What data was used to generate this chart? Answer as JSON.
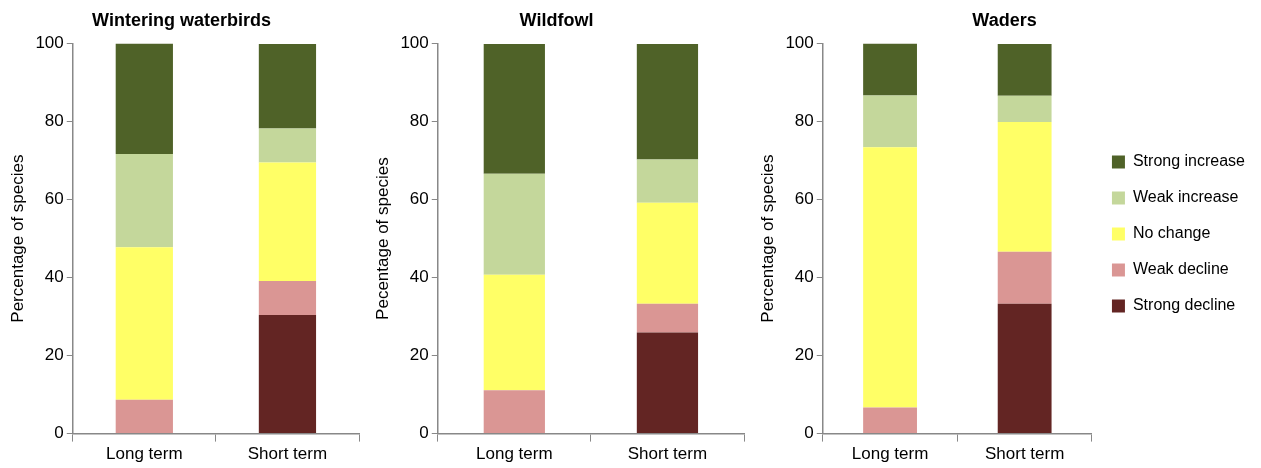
{
  "chart_data": [
    {
      "type": "bar",
      "title": "Wintering waterbirds",
      "ylabel": "Percentage of species",
      "categories": [
        "Long term",
        "Short term"
      ],
      "stacked": true,
      "ylim": [
        0,
        100
      ],
      "yticks": [
        0,
        20,
        40,
        60,
        80,
        100
      ],
      "grid": false,
      "legend": false,
      "series": [
        {
          "color": "#632523",
          "values": [
            0,
            30.4
          ]
        },
        {
          "color": "#da9694",
          "values": [
            8.7,
            8.7
          ]
        },
        {
          "color": "#ffff66",
          "values": [
            39.1,
            30.4
          ]
        },
        {
          "color": "#c4d79b",
          "values": [
            23.9,
            8.7
          ]
        },
        {
          "color": "#4f6228",
          "values": [
            28.3,
            21.7
          ]
        }
      ]
    },
    {
      "type": "bar",
      "title": "Wildfowl",
      "ylabel": "Pecentage of species",
      "categories": [
        "Long term",
        "Short term"
      ],
      "stacked": true,
      "ylim": [
        0,
        100
      ],
      "yticks": [
        0,
        20,
        40,
        60,
        80,
        100
      ],
      "grid": false,
      "legend": false,
      "series": [
        {
          "color": "#632523",
          "values": [
            0,
            25.9
          ]
        },
        {
          "color": "#da9694",
          "values": [
            11.1,
            7.4
          ]
        },
        {
          "color": "#ffff66",
          "values": [
            29.6,
            25.9
          ]
        },
        {
          "color": "#c4d79b",
          "values": [
            25.9,
            11.1
          ]
        },
        {
          "color": "#4f6228",
          "values": [
            33.3,
            29.6
          ]
        }
      ]
    },
    {
      "type": "bar",
      "title": "Waders",
      "ylabel": "Percentage of species",
      "categories": [
        "Long term",
        "Short term"
      ],
      "stacked": true,
      "ylim": [
        0,
        100
      ],
      "yticks": [
        0,
        20,
        40,
        60,
        80,
        100
      ],
      "grid": false,
      "legend": "right",
      "series": [
        {
          "name": "Strong decline",
          "color": "#632523",
          "values": [
            0,
            33.3
          ]
        },
        {
          "name": "Weak decline",
          "color": "#da9694",
          "values": [
            6.7,
            13.3
          ]
        },
        {
          "name": "No change",
          "color": "#ffff66",
          "values": [
            66.7,
            33.3
          ]
        },
        {
          "name": "Weak increase",
          "color": "#c4d79b",
          "values": [
            13.3,
            6.7
          ]
        },
        {
          "name": "Strong increase",
          "color": "#4f6228",
          "values": [
            13.3,
            13.3
          ]
        }
      ]
    }
  ]
}
